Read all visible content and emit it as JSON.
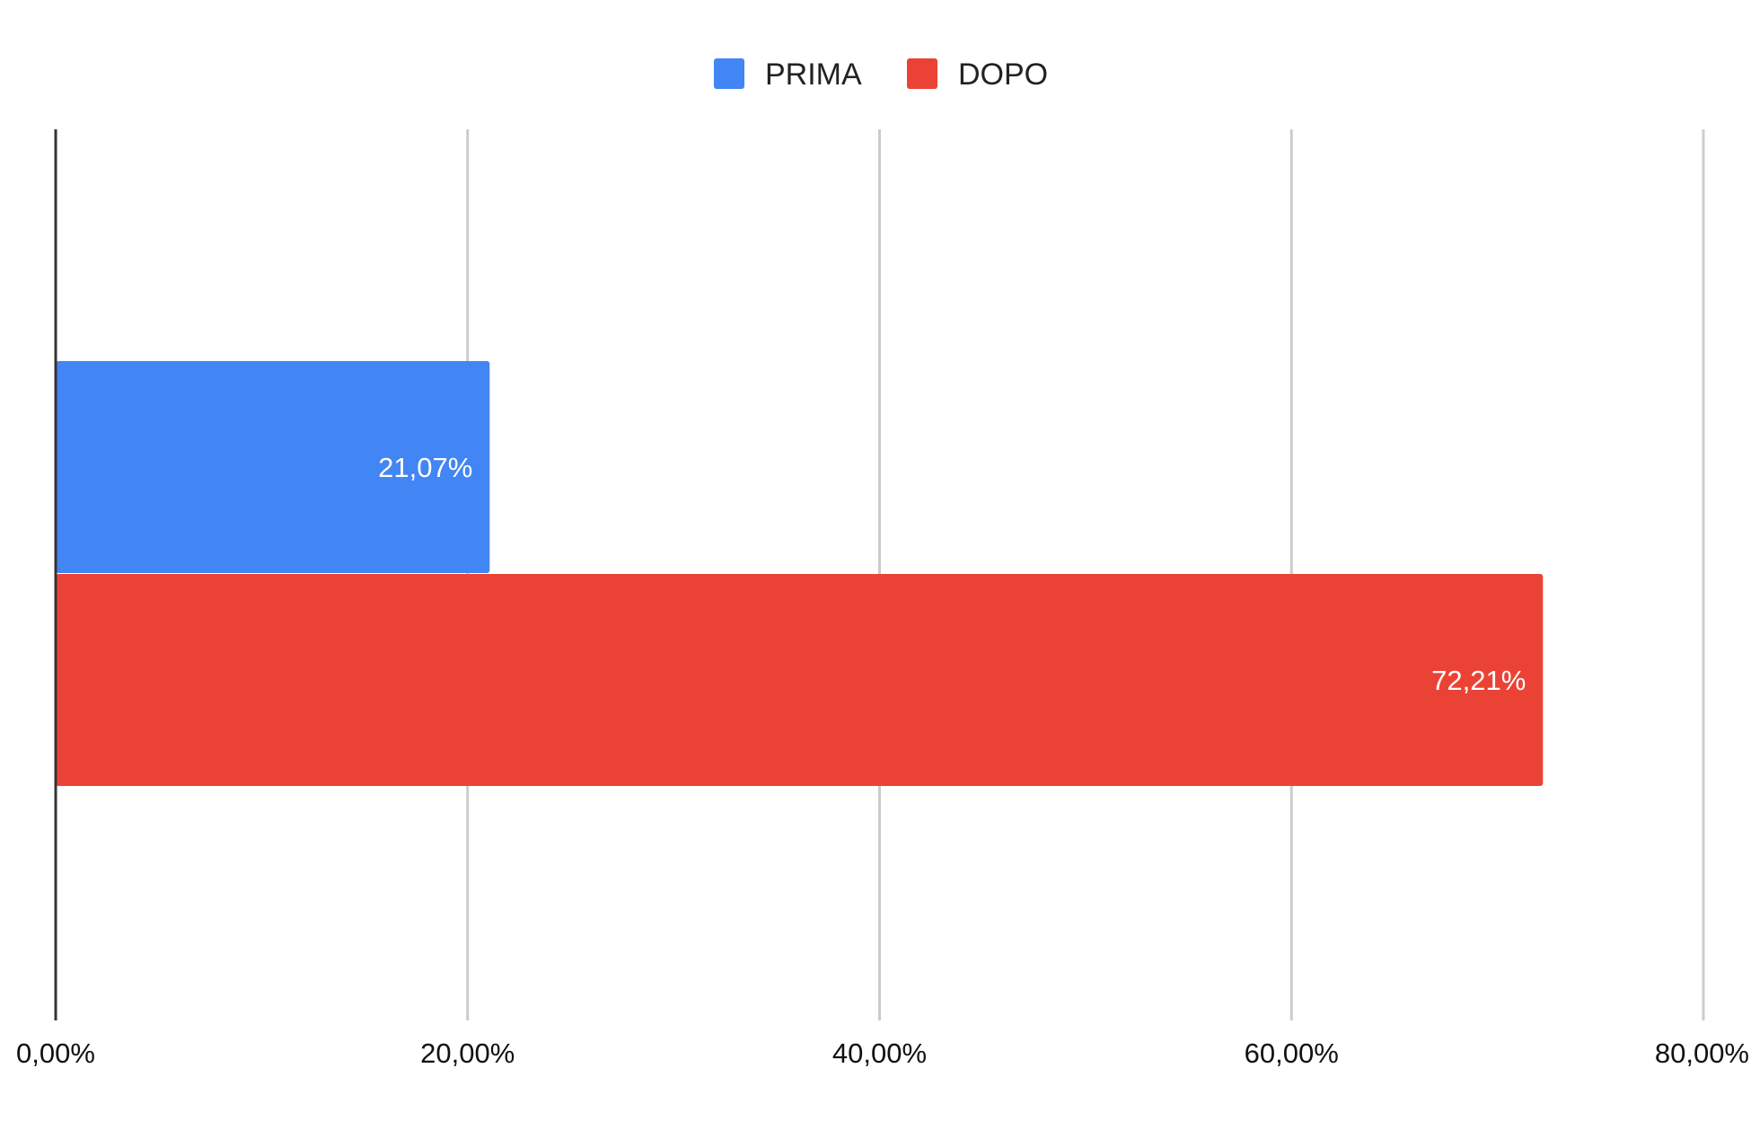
{
  "chart_data": {
    "type": "bar",
    "orientation": "horizontal",
    "categories": [
      ""
    ],
    "series": [
      {
        "name": "PRIMA",
        "values": [
          21.07
        ],
        "label": "21,07%",
        "color": "#4285f4"
      },
      {
        "name": "DOPO",
        "values": [
          72.21
        ],
        "label": "72,21%",
        "color": "#ea4335"
      }
    ],
    "xlim": [
      0,
      80
    ],
    "x_ticks": [
      0,
      20,
      40,
      60,
      80
    ],
    "x_tick_labels": [
      "0,00%",
      "20,00%",
      "40,00%",
      "60,00%",
      "80,00%"
    ],
    "title": "",
    "xlabel": "",
    "ylabel": "",
    "legend_position": "top-center",
    "grid": true,
    "gridline_color": "#cccccc",
    "axis_color": "#333333"
  }
}
